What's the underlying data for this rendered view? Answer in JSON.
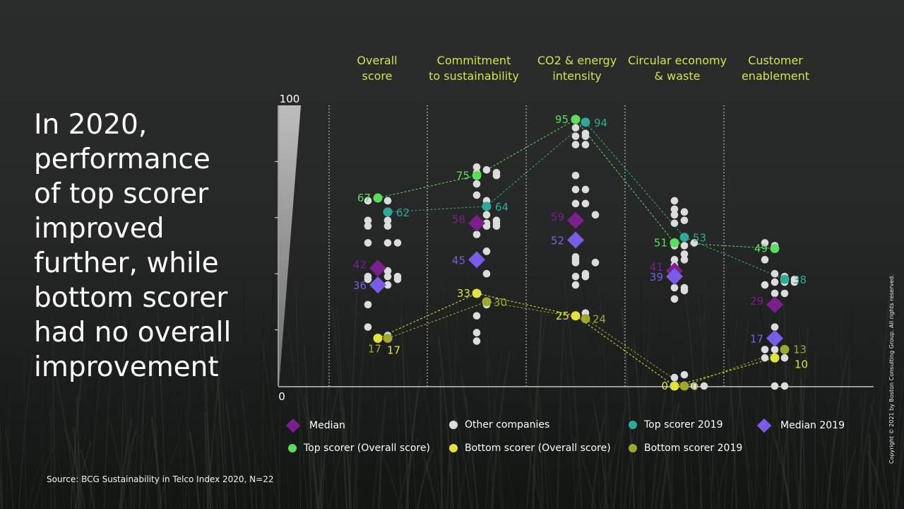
{
  "headline": "In 2020,\nperformance\nof top scorer\nimproved\nfurther, while\nbottom scorer\nhad no overall\nimprovement",
  "source": "Source: BCG Sustainability in Telco Index 2020, N=22",
  "copyright": "Copyright © 2021 by Boston Consulting Group. All rights reserved.",
  "colors": {
    "median": "#7b1f8c",
    "median_2019": "#7b5ce6",
    "top_scorer": "#5ddc5d",
    "top_scorer_2019": "#2fa99a",
    "bottom_scorer": "#e2e23c",
    "bottom_scorer_2019": "#9ea82e",
    "other": "#dcdcdc",
    "header": "#d6e44a"
  },
  "legend": [
    {
      "key": "median",
      "label": "Median",
      "shape": "diamond",
      "color": "#7b1f8c"
    },
    {
      "key": "other",
      "label": "Other companies",
      "shape": "circle",
      "color": "#dcdcdc"
    },
    {
      "key": "top_2019",
      "label": "Top scorer 2019",
      "shape": "circle",
      "color": "#2fa99a"
    },
    {
      "key": "median_2019",
      "label": "Median 2019",
      "shape": "diamond",
      "color": "#7b5ce6"
    },
    {
      "key": "top",
      "label": "Top scorer (Overall score)",
      "shape": "circle",
      "color": "#5ddc5d"
    },
    {
      "key": "bottom",
      "label": "Bottom scorer (Overall score)",
      "shape": "circle",
      "color": "#e2e23c"
    },
    {
      "key": "bottom_2019",
      "label": "Bottom scorer 2019",
      "shape": "circle",
      "color": "#9ea82e"
    }
  ],
  "chart_data": {
    "type": "scatter",
    "title": "",
    "ylim": [
      0,
      100
    ],
    "y_tick_labels": [
      "100",
      "0"
    ],
    "categories": [
      "Overall\nscore",
      "Commitment\nto sustainability",
      "CO2 & energy\nintensity",
      "Circular economy\n& waste",
      "Customer\nenablement"
    ],
    "series": [
      {
        "name": "Top scorer (Overall score)",
        "key": "top",
        "values": [
          67,
          75,
          95,
          51,
          49
        ],
        "labels": [
          "67",
          "75",
          "95",
          "51",
          "49"
        ]
      },
      {
        "name": "Top scorer 2019",
        "key": "top_2019",
        "values": [
          62,
          64,
          94,
          53,
          38
        ],
        "labels": [
          "62",
          "64",
          "94",
          "53",
          "38"
        ]
      },
      {
        "name": "Median",
        "key": "median",
        "values": [
          42,
          58,
          59,
          41,
          29
        ],
        "labels": [
          "42",
          "58",
          "59",
          "41",
          "29"
        ]
      },
      {
        "name": "Median 2019",
        "key": "median_2019",
        "values": [
          36,
          45,
          52,
          39,
          17
        ],
        "labels": [
          "36",
          "45",
          "52",
          "39",
          "17"
        ]
      },
      {
        "name": "Bottom scorer (Overall score)",
        "key": "bottom",
        "values": [
          17,
          33,
          25,
          0,
          10
        ],
        "labels": [
          "17",
          "33",
          "25",
          "0",
          "10"
        ]
      },
      {
        "name": "Bottom scorer 2019",
        "key": "bottom_2019",
        "values": [
          17,
          30,
          24,
          0,
          13
        ],
        "labels": [
          "17",
          "30",
          "24",
          "0",
          "13"
        ]
      }
    ],
    "other_companies": [
      {
        "category": 0,
        "points": [
          [
            -1,
            66
          ],
          [
            1,
            66
          ],
          [
            1,
            62
          ],
          [
            -1,
            59
          ],
          [
            1,
            59
          ],
          [
            -1,
            57
          ],
          [
            1,
            57
          ],
          [
            -1,
            51
          ],
          [
            1,
            51
          ],
          [
            2,
            51
          ],
          [
            1,
            41
          ],
          [
            -1,
            39
          ],
          [
            1,
            39
          ],
          [
            2,
            39
          ],
          [
            -1,
            38
          ],
          [
            2,
            38
          ],
          [
            1,
            36
          ],
          [
            -1,
            29
          ],
          [
            -1,
            21
          ],
          [
            1,
            18
          ]
        ]
      },
      {
        "category": 1,
        "points": [
          [
            0,
            78
          ],
          [
            0,
            76
          ],
          [
            1,
            77
          ],
          [
            2,
            76
          ],
          [
            2,
            75
          ],
          [
            0,
            72
          ],
          [
            0,
            68
          ],
          [
            1,
            66
          ],
          [
            1,
            61
          ],
          [
            2,
            59
          ],
          [
            2,
            58
          ],
          [
            1,
            58
          ],
          [
            2,
            57
          ],
          [
            1,
            57
          ],
          [
            0,
            54
          ],
          [
            1,
            48
          ],
          [
            1,
            40
          ],
          [
            1,
            29
          ],
          [
            0,
            25
          ],
          [
            0,
            19
          ],
          [
            0,
            16
          ]
        ]
      },
      {
        "category": 2,
        "points": [
          [
            0,
            92
          ],
          [
            1,
            90
          ],
          [
            0,
            89
          ],
          [
            1,
            89
          ],
          [
            0,
            86
          ],
          [
            1,
            86
          ],
          [
            0,
            75
          ],
          [
            1,
            70
          ],
          [
            0,
            70
          ],
          [
            0,
            65
          ],
          [
            1,
            65
          ],
          [
            2,
            61
          ],
          [
            0,
            46
          ],
          [
            0,
            45
          ],
          [
            2,
            44
          ],
          [
            0,
            44
          ],
          [
            1,
            40
          ],
          [
            0,
            39
          ],
          [
            1,
            39
          ],
          [
            0,
            36
          ],
          [
            1,
            26
          ],
          [
            0,
            25
          ]
        ]
      },
      {
        "category": 3,
        "points": [
          [
            0,
            66
          ],
          [
            0,
            63
          ],
          [
            1,
            62
          ],
          [
            0,
            61
          ],
          [
            1,
            59
          ],
          [
            0,
            58
          ],
          [
            1,
            53
          ],
          [
            2,
            51
          ],
          [
            0,
            50
          ],
          [
            1,
            50
          ],
          [
            1,
            47
          ],
          [
            0,
            45
          ],
          [
            1,
            45
          ],
          [
            0,
            43
          ],
          [
            0,
            40
          ],
          [
            0,
            35
          ],
          [
            1,
            35
          ],
          [
            1,
            34
          ],
          [
            0,
            31
          ],
          [
            0,
            3
          ],
          [
            1,
            4
          ],
          [
            1,
            0
          ],
          [
            2,
            0
          ],
          [
            3,
            0
          ]
        ]
      },
      {
        "category": 4,
        "points": [
          [
            -1,
            51
          ],
          [
            0,
            50
          ],
          [
            -1,
            45
          ],
          [
            0,
            40
          ],
          [
            1,
            39
          ],
          [
            2,
            38
          ],
          [
            2,
            37
          ],
          [
            1,
            37
          ],
          [
            0,
            37
          ],
          [
            -1,
            36
          ],
          [
            0,
            33
          ],
          [
            1,
            33
          ],
          [
            0,
            30
          ],
          [
            0,
            21
          ],
          [
            0,
            17
          ],
          [
            -1,
            13
          ],
          [
            0,
            13
          ],
          [
            1,
            13
          ],
          [
            0,
            10
          ],
          [
            -1,
            10
          ],
          [
            1,
            10
          ],
          [
            0,
            0
          ],
          [
            1,
            0
          ]
        ]
      }
    ],
    "series_links": [
      {
        "key": "top",
        "values": [
          67,
          75,
          95,
          51,
          49
        ]
      },
      {
        "key": "top_2019",
        "values": [
          62,
          64,
          94,
          53,
          38
        ]
      },
      {
        "key": "bottom",
        "values": [
          17,
          33,
          25,
          0,
          10
        ]
      },
      {
        "key": "bottom_2019",
        "values": [
          17,
          30,
          24,
          0,
          13
        ]
      }
    ]
  }
}
